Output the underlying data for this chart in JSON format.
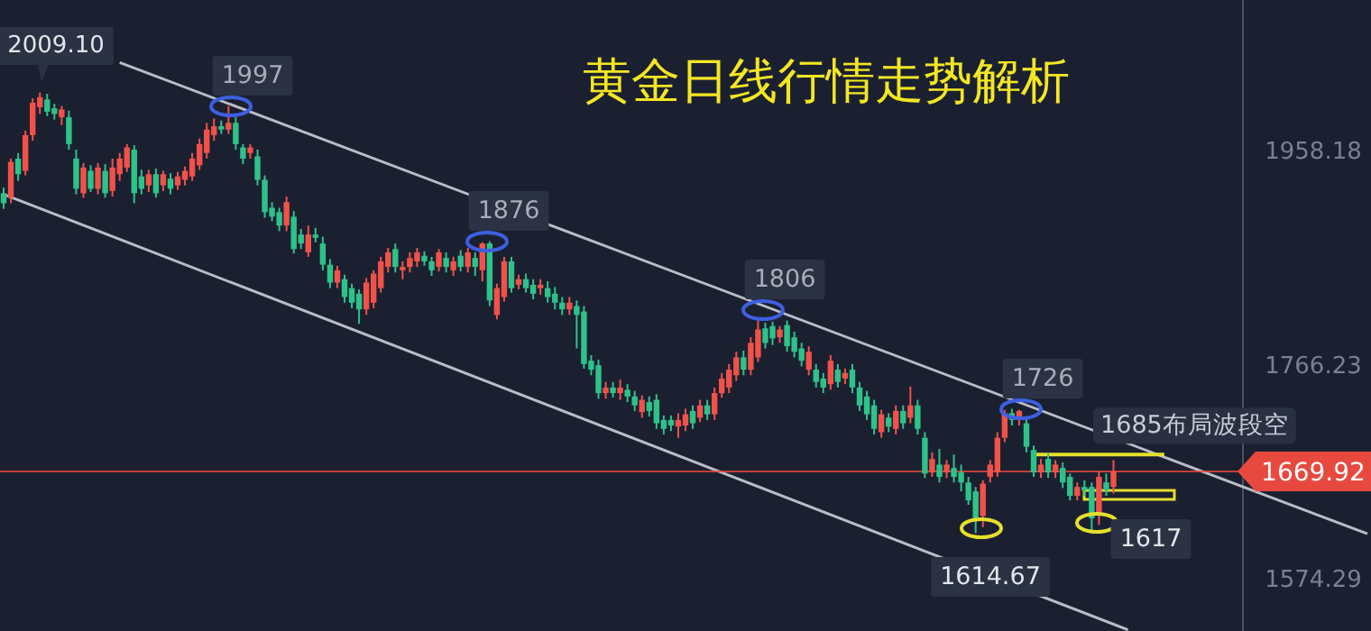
{
  "chart_data": {
    "type": "candlestick",
    "title": "黄金日线行情走势解析",
    "categories": [
      null,
      null,
      null,
      null,
      null,
      null,
      null,
      null,
      null,
      null,
      null,
      null,
      null,
      null,
      null,
      null,
      null,
      null,
      null,
      null,
      null,
      null,
      null,
      null,
      null,
      null,
      null,
      null,
      null,
      null,
      null,
      null,
      null,
      null,
      null,
      null,
      null,
      null,
      null,
      null,
      null,
      null,
      null,
      null,
      null,
      null,
      null,
      null,
      null,
      null,
      null,
      null,
      null,
      null,
      null,
      null,
      null,
      null,
      null,
      null,
      null,
      null,
      null,
      null,
      null,
      null,
      null,
      null,
      null,
      null,
      null,
      null,
      null,
      null,
      null,
      null,
      null,
      null,
      null,
      null,
      null,
      null,
      null,
      null,
      null,
      null,
      null,
      null,
      null,
      null,
      null,
      null,
      null,
      null,
      null,
      null,
      null,
      null,
      null,
      null,
      null,
      null,
      null,
      null,
      null,
      null,
      null,
      null,
      null,
      null,
      null,
      null,
      null,
      null,
      null,
      null,
      null,
      null,
      null,
      null,
      null,
      null,
      null,
      null,
      null,
      null,
      null,
      null,
      null,
      null,
      null,
      null,
      null,
      null,
      null,
      null,
      null,
      null,
      null,
      null,
      null,
      null,
      null,
      null,
      null,
      null,
      null,
      null,
      null,
      null,
      null,
      null,
      null,
      null,
      null,
      null,
      null,
      null,
      null,
      null,
      null,
      null,
      null,
      null,
      null,
      null,
      null,
      null,
      null,
      null,
      null,
      null,
      null,
      null,
      null,
      null,
      null,
      null,
      null,
      null,
      null,
      null,
      null,
      null,
      null,
      null,
      null,
      null,
      null
    ],
    "ohlc": [
      [
        1919,
        1924,
        1905,
        1910
      ],
      [
        1915,
        1950,
        1910,
        1947
      ],
      [
        1950,
        1955,
        1930,
        1936
      ],
      [
        1939,
        1975,
        1935,
        1971
      ],
      [
        1971,
        2004,
        1966,
        2000
      ],
      [
        1996,
        2009.1,
        1990,
        2005
      ],
      [
        2003,
        2008,
        1988,
        1992
      ],
      [
        1995,
        1999,
        1985,
        1990
      ],
      [
        1987,
        1997,
        1980,
        1994
      ],
      [
        1987,
        1993,
        1958,
        1963
      ],
      [
        1950,
        1958,
        1918,
        1923
      ],
      [
        1919,
        1946,
        1915,
        1942
      ],
      [
        1939,
        1944,
        1920,
        1923
      ],
      [
        1923,
        1946,
        1918,
        1942
      ],
      [
        1939,
        1945,
        1915,
        1919
      ],
      [
        1921,
        1950,
        1916,
        1942
      ],
      [
        1936,
        1955,
        1930,
        1950
      ],
      [
        1942,
        1963,
        1938,
        1960
      ],
      [
        1958,
        1962,
        1910,
        1919
      ],
      [
        1934,
        1940,
        1918,
        1923
      ],
      [
        1926,
        1940,
        1920,
        1936
      ],
      [
        1936,
        1941,
        1915,
        1919
      ],
      [
        1926,
        1939,
        1921,
        1936
      ],
      [
        1932,
        1937,
        1918,
        1923
      ],
      [
        1926,
        1938,
        1922,
        1934
      ],
      [
        1931,
        1943,
        1926,
        1939
      ],
      [
        1934,
        1955,
        1930,
        1950
      ],
      [
        1944,
        1968,
        1940,
        1963
      ],
      [
        1955,
        1982,
        1950,
        1976
      ],
      [
        1971,
        1986,
        1966,
        1979
      ],
      [
        1979,
        1984,
        1972,
        1976
      ],
      [
        1976,
        1997,
        1972,
        1982
      ],
      [
        1982,
        1987,
        1958,
        1963
      ],
      [
        1960,
        1963,
        1945,
        1950
      ],
      [
        1955,
        1963,
        1950,
        1960
      ],
      [
        1952,
        1958,
        1926,
        1931
      ],
      [
        1931,
        1935,
        1897,
        1902
      ],
      [
        1906,
        1911,
        1894,
        1898
      ],
      [
        1902,
        1906,
        1885,
        1890
      ],
      [
        1890,
        1916,
        1885,
        1911
      ],
      [
        1898,
        1903,
        1865,
        1869
      ],
      [
        1882,
        1887,
        1869,
        1874
      ],
      [
        1866,
        1890,
        1862,
        1882
      ],
      [
        1882,
        1888,
        1875,
        1879
      ],
      [
        1874,
        1880,
        1850,
        1855
      ],
      [
        1855,
        1860,
        1834,
        1839
      ],
      [
        1839,
        1854,
        1834,
        1850
      ],
      [
        1842,
        1846,
        1821,
        1826
      ],
      [
        1834,
        1838,
        1816,
        1821
      ],
      [
        1829,
        1833,
        1802,
        1815
      ],
      [
        1815,
        1843,
        1810,
        1839
      ],
      [
        1821,
        1850,
        1816,
        1847
      ],
      [
        1834,
        1862,
        1830,
        1858
      ],
      [
        1853,
        1870,
        1848,
        1866
      ],
      [
        1869,
        1874,
        1848,
        1853
      ],
      [
        1850,
        1858,
        1842,
        1853
      ],
      [
        1853,
        1866,
        1848,
        1861
      ],
      [
        1858,
        1870,
        1853,
        1866
      ],
      [
        1863,
        1867,
        1854,
        1858
      ],
      [
        1858,
        1862,
        1845,
        1850
      ],
      [
        1853,
        1869,
        1849,
        1866
      ],
      [
        1861,
        1866,
        1848,
        1853
      ],
      [
        1850,
        1862,
        1845,
        1858
      ],
      [
        1863,
        1868,
        1849,
        1853
      ],
      [
        1853,
        1870,
        1848,
        1866
      ],
      [
        1861,
        1866,
        1845,
        1853
      ],
      [
        1850,
        1875,
        1840,
        1874
      ],
      [
        1874,
        1876,
        1818,
        1823
      ],
      [
        1810,
        1838,
        1806,
        1834
      ],
      [
        1826,
        1862,
        1822,
        1858
      ],
      [
        1858,
        1862,
        1830,
        1834
      ],
      [
        1837,
        1846,
        1833,
        1842
      ],
      [
        1842,
        1847,
        1830,
        1834
      ],
      [
        1837,
        1842,
        1824,
        1829
      ],
      [
        1834,
        1842,
        1828,
        1837
      ],
      [
        1834,
        1840,
        1821,
        1826
      ],
      [
        1829,
        1835,
        1815,
        1821
      ],
      [
        1821,
        1826,
        1810,
        1815
      ],
      [
        1815,
        1826,
        1810,
        1821
      ],
      [
        1818,
        1823,
        1780,
        1810
      ],
      [
        1813,
        1818,
        1762,
        1766
      ],
      [
        1769,
        1774,
        1756,
        1761
      ],
      [
        1765,
        1770,
        1735,
        1740
      ],
      [
        1740,
        1750,
        1735,
        1745
      ],
      [
        1745,
        1750,
        1736,
        1740
      ],
      [
        1740,
        1752,
        1734,
        1745
      ],
      [
        1743,
        1748,
        1732,
        1737
      ],
      [
        1737,
        1742,
        1724,
        1729
      ],
      [
        1723,
        1738,
        1718,
        1734
      ],
      [
        1732,
        1737,
        1719,
        1724
      ],
      [
        1734,
        1739,
        1708,
        1713
      ],
      [
        1716,
        1720,
        1703,
        1708
      ],
      [
        1716,
        1720,
        1706,
        1711
      ],
      [
        1710,
        1722,
        1700,
        1716
      ],
      [
        1711,
        1726,
        1706,
        1721
      ],
      [
        1724,
        1729,
        1708,
        1713
      ],
      [
        1718,
        1734,
        1714,
        1729
      ],
      [
        1729,
        1734,
        1716,
        1721
      ],
      [
        1721,
        1745,
        1716,
        1740
      ],
      [
        1740,
        1758,
        1736,
        1753
      ],
      [
        1745,
        1766,
        1740,
        1761
      ],
      [
        1756,
        1777,
        1751,
        1772
      ],
      [
        1772,
        1778,
        1756,
        1761
      ],
      [
        1761,
        1790,
        1756,
        1785
      ],
      [
        1772,
        1806,
        1768,
        1797
      ],
      [
        1798,
        1803,
        1780,
        1785
      ],
      [
        1800,
        1804,
        1783,
        1789
      ],
      [
        1790,
        1800,
        1785,
        1797
      ],
      [
        1801,
        1805,
        1777,
        1782
      ],
      [
        1790,
        1795,
        1772,
        1777
      ],
      [
        1780,
        1785,
        1764,
        1769
      ],
      [
        1761,
        1782,
        1756,
        1777
      ],
      [
        1761,
        1766,
        1745,
        1750
      ],
      [
        1753,
        1758,
        1740,
        1745
      ],
      [
        1748,
        1774,
        1743,
        1769
      ],
      [
        1761,
        1766,
        1745,
        1750
      ],
      [
        1753,
        1762,
        1748,
        1758
      ],
      [
        1761,
        1766,
        1740,
        1745
      ],
      [
        1745,
        1750,
        1724,
        1729
      ],
      [
        1737,
        1742,
        1716,
        1721
      ],
      [
        1729,
        1734,
        1703,
        1708
      ],
      [
        1705,
        1725,
        1700,
        1721
      ],
      [
        1718,
        1722,
        1705,
        1710
      ],
      [
        1708,
        1729,
        1703,
        1724
      ],
      [
        1724,
        1729,
        1708,
        1713
      ],
      [
        1718,
        1746,
        1713,
        1729
      ],
      [
        1729,
        1734,
        1703,
        1708
      ],
      [
        1700,
        1705,
        1664,
        1668
      ],
      [
        1669,
        1687,
        1665,
        1681
      ],
      [
        1676,
        1690,
        1660,
        1665
      ],
      [
        1669,
        1680,
        1664,
        1676
      ],
      [
        1673,
        1685,
        1660,
        1665
      ],
      [
        1669,
        1676,
        1652,
        1660
      ],
      [
        1660,
        1665,
        1640,
        1644
      ],
      [
        1652,
        1656,
        1614.67,
        1628
      ],
      [
        1630,
        1662,
        1620,
        1659
      ],
      [
        1665,
        1680,
        1660,
        1676
      ],
      [
        1669,
        1705,
        1665,
        1700
      ],
      [
        1700,
        1725,
        1696,
        1722
      ],
      [
        1722,
        1726,
        1711,
        1716
      ],
      [
        1716,
        1725,
        1711,
        1724
      ],
      [
        1713,
        1718,
        1687,
        1692
      ],
      [
        1689,
        1693,
        1665,
        1669
      ],
      [
        1669,
        1681,
        1664,
        1676
      ],
      [
        1681,
        1686,
        1664,
        1669
      ],
      [
        1669,
        1680,
        1664,
        1676
      ],
      [
        1673,
        1678,
        1655,
        1660
      ],
      [
        1665,
        1668,
        1644,
        1648
      ],
      [
        1648,
        1660,
        1644,
        1656
      ],
      [
        1656,
        1662,
        1648,
        1653
      ],
      [
        1656,
        1660,
        1617,
        1628
      ],
      [
        1632,
        1670,
        1622,
        1665
      ],
      [
        1660,
        1668,
        1648,
        1653
      ],
      [
        1656,
        1680,
        1650,
        1669.92
      ],
      null,
      null,
      null,
      null,
      null,
      null,
      null,
      null,
      null,
      null,
      null,
      null,
      null,
      null,
      null,
      null,
      null,
      null,
      null,
      null,
      null,
      null,
      null,
      null,
      null,
      null,
      null,
      null,
      null,
      null,
      null,
      null,
      null,
      null,
      null
    ],
    "ylim": [
      1527,
      2092
    ],
    "yticks": [
      1958.18,
      1766.23,
      1574.29
    ],
    "tick_labels": "y",
    "ref_lines": [
      {
        "axis": "y",
        "value": 1669.92,
        "label": "1669.92",
        "color": "#e8493f"
      }
    ],
    "series": [
      {
        "type": "line",
        "color": "#b9bdc6",
        "values": [
          null,
          null,
          null,
          null,
          null,
          null,
          null,
          null,
          null,
          null,
          null,
          null,
          null,
          null,
          null,
          null,
          2036,
          null,
          null,
          null,
          null,
          null,
          null,
          null,
          null,
          null,
          null,
          null,
          null,
          null,
          null,
          null,
          null,
          null,
          null,
          null,
          null,
          null,
          null,
          null,
          null,
          null,
          null,
          null,
          null,
          null,
          null,
          null,
          null,
          null,
          null,
          null,
          null,
          null,
          null,
          null,
          null,
          null,
          null,
          null,
          null,
          null,
          null,
          null,
          null,
          null,
          null,
          null,
          null,
          null,
          null,
          null,
          null,
          null,
          null,
          null,
          null,
          null,
          null,
          null,
          null,
          null,
          null,
          null,
          null,
          null,
          null,
          null,
          null,
          null,
          null,
          null,
          null,
          null,
          null,
          null,
          null,
          null,
          null,
          null,
          null,
          null,
          null,
          null,
          null,
          null,
          null,
          null,
          null,
          null,
          null,
          null,
          null,
          null,
          null,
          null,
          null,
          null,
          null,
          null,
          null,
          null,
          null,
          null,
          null,
          null,
          null,
          null,
          null,
          null,
          null,
          null,
          null,
          null,
          null,
          null,
          null,
          null,
          null,
          null,
          null,
          null,
          null,
          null,
          null,
          null,
          null,
          null,
          null,
          null,
          null,
          null,
          null,
          null,
          null,
          null,
          null,
          null,
          null,
          null,
          null,
          null,
          null,
          null,
          null,
          null,
          null,
          null,
          null,
          null,
          null,
          null,
          null,
          null,
          null,
          null,
          null,
          null,
          null,
          null,
          null,
          null,
          null,
          null,
          null,
          null,
          null,
          null,
          1614
        ]
      },
      {
        "type": "line",
        "color": "#b9bdc6",
        "values": [
          1918,
          null,
          null,
          null,
          null,
          null,
          null,
          null,
          null,
          null,
          null,
          null,
          null,
          null,
          null,
          null,
          null,
          null,
          null,
          null,
          null,
          null,
          null,
          null,
          null,
          null,
          null,
          null,
          null,
          null,
          null,
          null,
          null,
          null,
          null,
          null,
          null,
          null,
          null,
          null,
          null,
          null,
          null,
          null,
          null,
          null,
          null,
          null,
          null,
          null,
          null,
          null,
          null,
          null,
          null,
          null,
          null,
          null,
          null,
          null,
          null,
          null,
          null,
          null,
          null,
          null,
          null,
          null,
          null,
          null,
          null,
          null,
          null,
          null,
          null,
          null,
          null,
          null,
          null,
          null,
          null,
          null,
          null,
          null,
          null,
          null,
          null,
          null,
          null,
          null,
          null,
          null,
          null,
          null,
          null,
          null,
          null,
          null,
          null,
          null,
          null,
          null,
          null,
          null,
          null,
          null,
          null,
          null,
          null,
          null,
          null,
          null,
          null,
          null,
          null,
          null,
          null,
          null,
          null,
          null,
          null,
          null,
          null,
          null,
          null,
          null,
          null,
          null,
          null,
          null,
          null,
          null,
          null,
          null,
          null,
          null,
          null,
          null,
          null,
          null,
          null,
          null,
          null,
          null,
          null,
          null,
          null,
          null,
          null,
          null,
          null,
          null,
          null,
          null,
          null,
          1528,
          null,
          null,
          null,
          null,
          null,
          null,
          null,
          null,
          null,
          null,
          null,
          null,
          null,
          null,
          null,
          null,
          null,
          null,
          null,
          null,
          null,
          null,
          null,
          null,
          null,
          null,
          null,
          null,
          null,
          null,
          null,
          null,
          null
        ]
      },
      {
        "type": "line",
        "name": "1685布局波段空",
        "color": "#e6df2e",
        "values": [
          null,
          null,
          null,
          null,
          null,
          null,
          null,
          null,
          null,
          null,
          null,
          null,
          null,
          null,
          null,
          null,
          null,
          null,
          null,
          null,
          null,
          null,
          null,
          null,
          null,
          null,
          null,
          null,
          null,
          null,
          null,
          null,
          null,
          null,
          null,
          null,
          null,
          null,
          null,
          null,
          null,
          null,
          null,
          null,
          null,
          null,
          null,
          null,
          null,
          null,
          null,
          null,
          null,
          null,
          null,
          null,
          null,
          null,
          null,
          null,
          null,
          null,
          null,
          null,
          null,
          null,
          null,
          null,
          null,
          null,
          null,
          null,
          null,
          null,
          null,
          null,
          null,
          null,
          null,
          null,
          null,
          null,
          null,
          null,
          null,
          null,
          null,
          null,
          null,
          null,
          null,
          null,
          null,
          null,
          null,
          null,
          null,
          null,
          null,
          null,
          null,
          null,
          null,
          null,
          null,
          null,
          null,
          null,
          null,
          null,
          null,
          null,
          null,
          null,
          null,
          null,
          null,
          null,
          null,
          null,
          null,
          null,
          null,
          null,
          null,
          null,
          null,
          null,
          null,
          null,
          null,
          null,
          null,
          null,
          null,
          null,
          null,
          null,
          null,
          null,
          null,
          null,
          1685,
          null,
          null,
          null,
          null,
          null,
          null,
          null,
          null,
          null,
          null,
          null,
          null,
          null,
          null,
          null,
          null,
          null,
          1685,
          null,
          null,
          null,
          null,
          null,
          null,
          null,
          null,
          null,
          null,
          null,
          null,
          null,
          null,
          null,
          null,
          null,
          null,
          null,
          null,
          null,
          null,
          null,
          null,
          null,
          null,
          null,
          null
        ]
      }
    ],
    "annotations": [
      "2009.10",
      "1997",
      "1876",
      "1806",
      "1726",
      "1614.67",
      "1617"
    ]
  }
}
